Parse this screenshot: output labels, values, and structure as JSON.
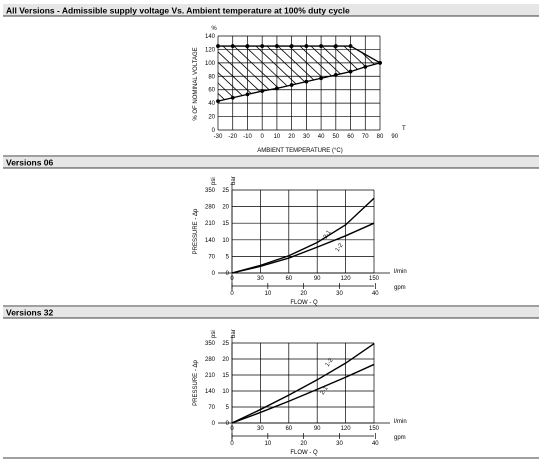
{
  "sections": [
    {
      "title": "All Versions - Admissible supply voltage Vs. Ambient temperature at 100% duty cycle"
    },
    {
      "title": "Versions 06"
    },
    {
      "title": "Versions 32"
    }
  ],
  "chart_data": [
    {
      "type": "line",
      "title": "",
      "xlabel": "AMBIENT TEMPERATURE (°C)",
      "x_axis_letter": "T",
      "ylabel": "% OF NOMINAL VOLTAGE",
      "y_unit": "%",
      "xlim": [
        -30,
        80
      ],
      "ylim": [
        0,
        140
      ],
      "x_ticks": [
        "-30",
        "-20",
        "-10",
        "0",
        "10",
        "20",
        "30",
        "40",
        "50",
        "60",
        "70",
        "80",
        "90"
      ],
      "y_ticks": [
        "0",
        "20",
        "40",
        "60",
        "80",
        "100",
        "120",
        "140"
      ],
      "series": [
        {
          "points": [
            [
              -30,
              125
            ],
            [
              -20,
              125
            ],
            [
              -10,
              125
            ],
            [
              0,
              125
            ],
            [
              10,
              125
            ],
            [
              20,
              125
            ],
            [
              30,
              125
            ],
            [
              40,
              125
            ],
            [
              50,
              125
            ],
            [
              60,
              125
            ],
            [
              80,
              100
            ]
          ]
        },
        {
          "points": [
            [
              -30,
              43
            ],
            [
              -20,
              48
            ],
            [
              -10,
              53
            ],
            [
              0,
              58
            ],
            [
              10,
              62
            ],
            [
              20,
              67
            ],
            [
              30,
              72
            ],
            [
              40,
              77
            ],
            [
              50,
              82
            ],
            [
              60,
              87
            ],
            [
              70,
              94
            ],
            [
              80,
              100
            ]
          ]
        }
      ],
      "hatched_region": true
    },
    {
      "type": "line",
      "xlabel": "FLOW - Q",
      "ylabel": "PRESSURE - Δp",
      "x_unit_top": "l/min",
      "x_unit_bottom": "gpm",
      "y_unit_left": "psi",
      "y_unit_right": "bar",
      "xlim": [
        0,
        150
      ],
      "ylim": [
        0,
        25
      ],
      "x_ticks_top": [
        "0",
        "30",
        "60",
        "90",
        "120",
        "150"
      ],
      "x_ticks_bottom": [
        "0",
        "10",
        "20",
        "30",
        "40"
      ],
      "y_ticks_bar": [
        "0",
        "5",
        "10",
        "15",
        "20",
        "25"
      ],
      "y_ticks_psi": [
        "0",
        "70",
        "140",
        "210",
        "280",
        "350"
      ],
      "series": [
        {
          "name": "2-1",
          "points": [
            [
              0,
              0
            ],
            [
              30,
              2.3
            ],
            [
              60,
              5.2
            ],
            [
              90,
              9.2
            ],
            [
              120,
              14.5
            ],
            [
              150,
              22.5
            ]
          ]
        },
        {
          "name": "1-2",
          "points": [
            [
              0,
              0
            ],
            [
              30,
              2.0
            ],
            [
              60,
              4.5
            ],
            [
              90,
              7.8
            ],
            [
              120,
              11.2
            ],
            [
              150,
              15.0
            ]
          ]
        }
      ]
    },
    {
      "type": "line",
      "xlabel": "FLOW - Q",
      "ylabel": "PRESSURE - Δp",
      "x_unit_top": "l/min",
      "x_unit_bottom": "gpm",
      "y_unit_left": "psi",
      "y_unit_right": "bar",
      "xlim": [
        0,
        150
      ],
      "ylim": [
        0,
        25
      ],
      "x_ticks_top": [
        "0",
        "30",
        "60",
        "90",
        "120",
        "150"
      ],
      "x_ticks_bottom": [
        "0",
        "10",
        "20",
        "30",
        "40"
      ],
      "y_ticks_bar": [
        "0",
        "5",
        "10",
        "15",
        "20",
        "25"
      ],
      "y_ticks_psi": [
        "0",
        "70",
        "140",
        "210",
        "280",
        "350"
      ],
      "series": [
        {
          "name": "1-2",
          "points": [
            [
              0,
              0
            ],
            [
              30,
              4.2
            ],
            [
              60,
              8.7
            ],
            [
              90,
              13.5
            ],
            [
              120,
              18.7
            ],
            [
              150,
              24.8
            ]
          ]
        },
        {
          "name": "2-1",
          "points": [
            [
              0,
              0
            ],
            [
              30,
              3.3
            ],
            [
              60,
              6.8
            ],
            [
              90,
              10.5
            ],
            [
              120,
              14.3
            ],
            [
              150,
              18.3
            ]
          ]
        }
      ]
    }
  ]
}
